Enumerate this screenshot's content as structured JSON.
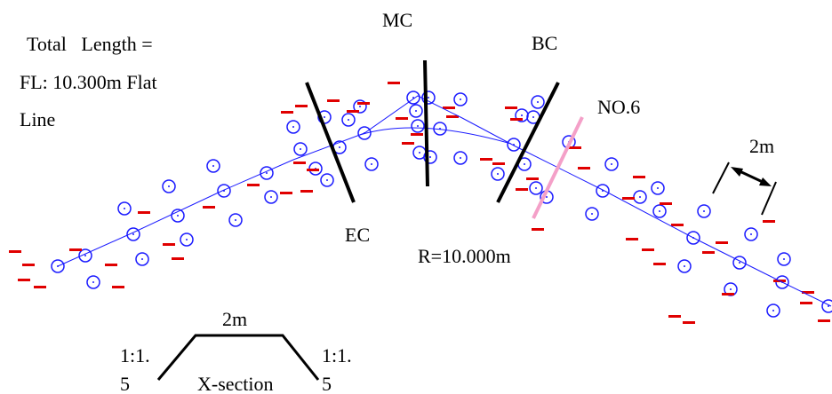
{
  "header": {
    "total_length": "Total   Length =",
    "fl": "FL: 10.300m Flat",
    "fl_line2": "Line"
  },
  "curve_points": {
    "mc": "MC",
    "bc": "BC",
    "ec": "EC",
    "no6": "NO.6"
  },
  "radius": "R=10.000m",
  "width_marker": "2m",
  "x_section": {
    "top_width": "2m",
    "left_slope_1": "1:1.",
    "left_slope_2": "5",
    "right_slope_1": "1:1.",
    "right_slope_2": "5",
    "label": "X-section"
  }
}
